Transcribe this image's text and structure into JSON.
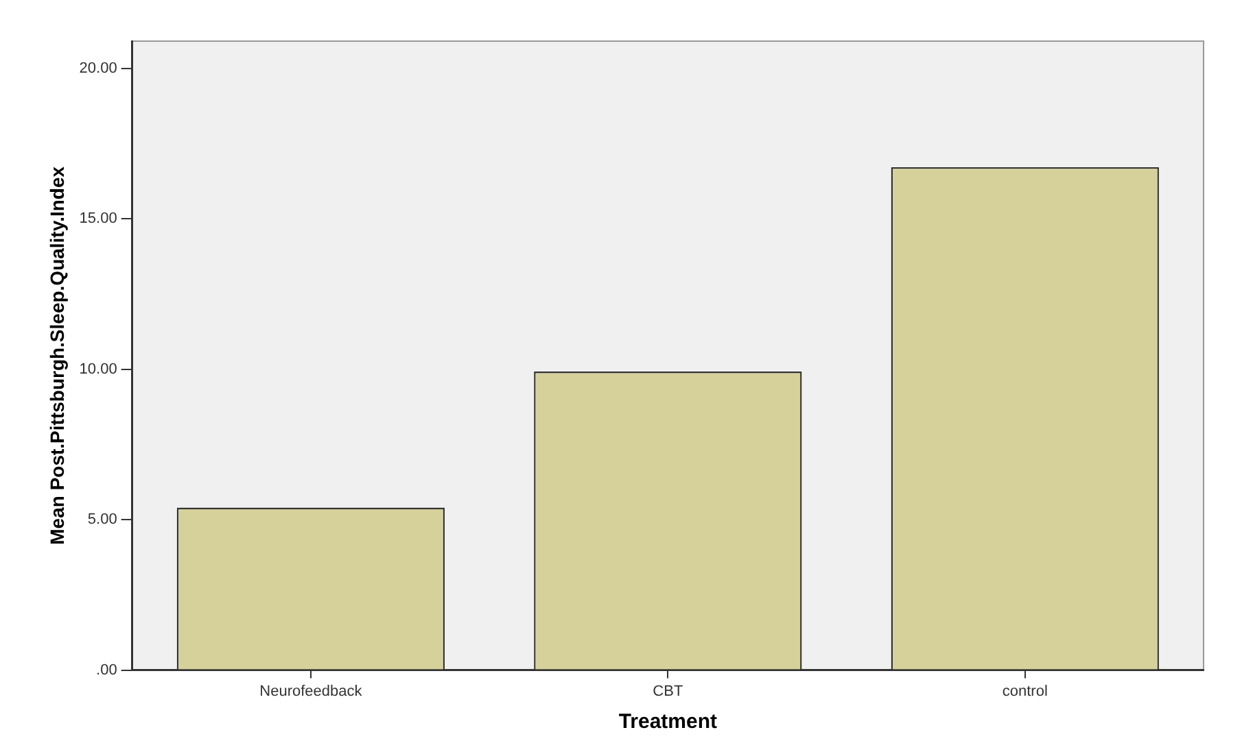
{
  "chart_data": {
    "type": "bar",
    "xlabel": "Treatment",
    "ylabel": "Mean Post.Pittsburgh.Sleep.Quality.Index",
    "categories": [
      "Neurofeedback",
      "CBT",
      "control"
    ],
    "values": [
      5.4,
      9.92,
      16.71
    ],
    "color": "#d6d19b",
    "ylim": [
      0,
      20.9
    ],
    "yticks": [
      {
        "value": 0,
        "label": ".00"
      },
      {
        "value": 5,
        "label": "5.00"
      },
      {
        "value": 10,
        "label": "10.00"
      },
      {
        "value": 15,
        "label": "15.00"
      },
      {
        "value": 20,
        "label": "20.00"
      }
    ],
    "grid": false,
    "legend": false
  }
}
